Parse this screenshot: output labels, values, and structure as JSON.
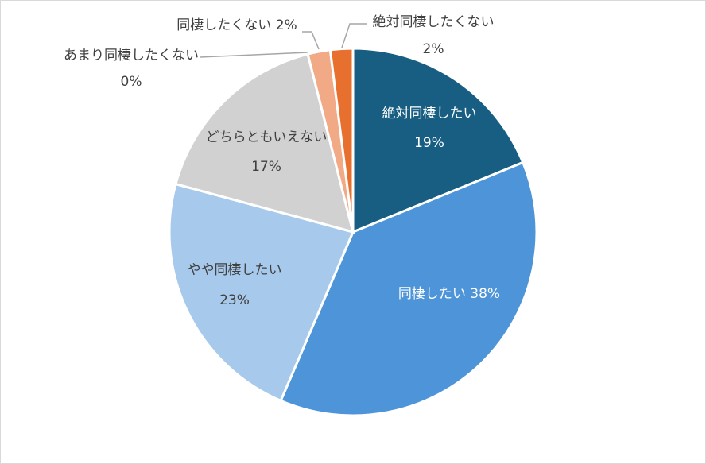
{
  "chart_data": {
    "type": "pie",
    "categories": [
      "絶対同棲したい",
      "同棲したい",
      "やや同棲したい",
      "どちらともいえない",
      "あまり同棲したくない",
      "同棲したくない",
      "絶対同棲したくない"
    ],
    "values": [
      19,
      38,
      23,
      17,
      0,
      2,
      2
    ],
    "value_labels": [
      "19%",
      "38%",
      "23%",
      "17%",
      "0%",
      "2%",
      "2%"
    ],
    "colors": [
      "#175e82",
      "#4d94d8",
      "#a7c9ec",
      "#d1d1d1",
      "#bfbfbf",
      "#f2aa86",
      "#e8702f"
    ]
  }
}
